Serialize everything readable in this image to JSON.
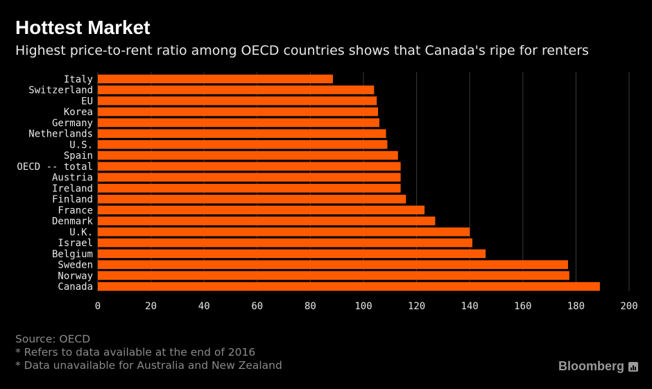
{
  "header": {
    "title": "Hottest Market",
    "subtitle": "Highest price-to-rent ratio among OECD countries shows that Canada's ripe for renters"
  },
  "notes": {
    "source": "Source: OECD",
    "note1": "* Refers to data available at the end of 2016",
    "note2": "* Data unavailable for Australia and New Zealand"
  },
  "brand": {
    "name": "Bloomberg",
    "icon": "bloomberg-terminal-icon"
  },
  "colors": {
    "bar": "#ff5a00",
    "background": "#000000",
    "grid": "#3a3a3a"
  },
  "chart_data": {
    "type": "bar",
    "orientation": "horizontal",
    "title": "Hottest Market",
    "subtitle": "Highest price-to-rent ratio among OECD countries shows that Canada's ripe for renters",
    "categories": [
      "Italy",
      "Switzerland",
      "EU",
      "Korea",
      "Germany",
      "Netherlands",
      "U.S.",
      "Spain",
      "OECD -- total",
      "Austria",
      "Ireland",
      "Finland",
      "France",
      "Denmark",
      "U.K.",
      "Israel",
      "Belgium",
      "Sweden",
      "Norway",
      "Canada"
    ],
    "values": [
      88.5,
      104,
      105,
      105.5,
      106,
      108.5,
      109,
      113,
      114,
      114,
      114,
      116,
      123,
      127,
      140,
      141,
      146,
      177,
      177.5,
      189
    ],
    "xlim": [
      0,
      200
    ],
    "xticks": [
      "0",
      "20",
      "40",
      "60",
      "80",
      "100",
      "120",
      "140",
      "160",
      "180",
      "200"
    ],
    "grid": "vertical",
    "legend": "none"
  }
}
